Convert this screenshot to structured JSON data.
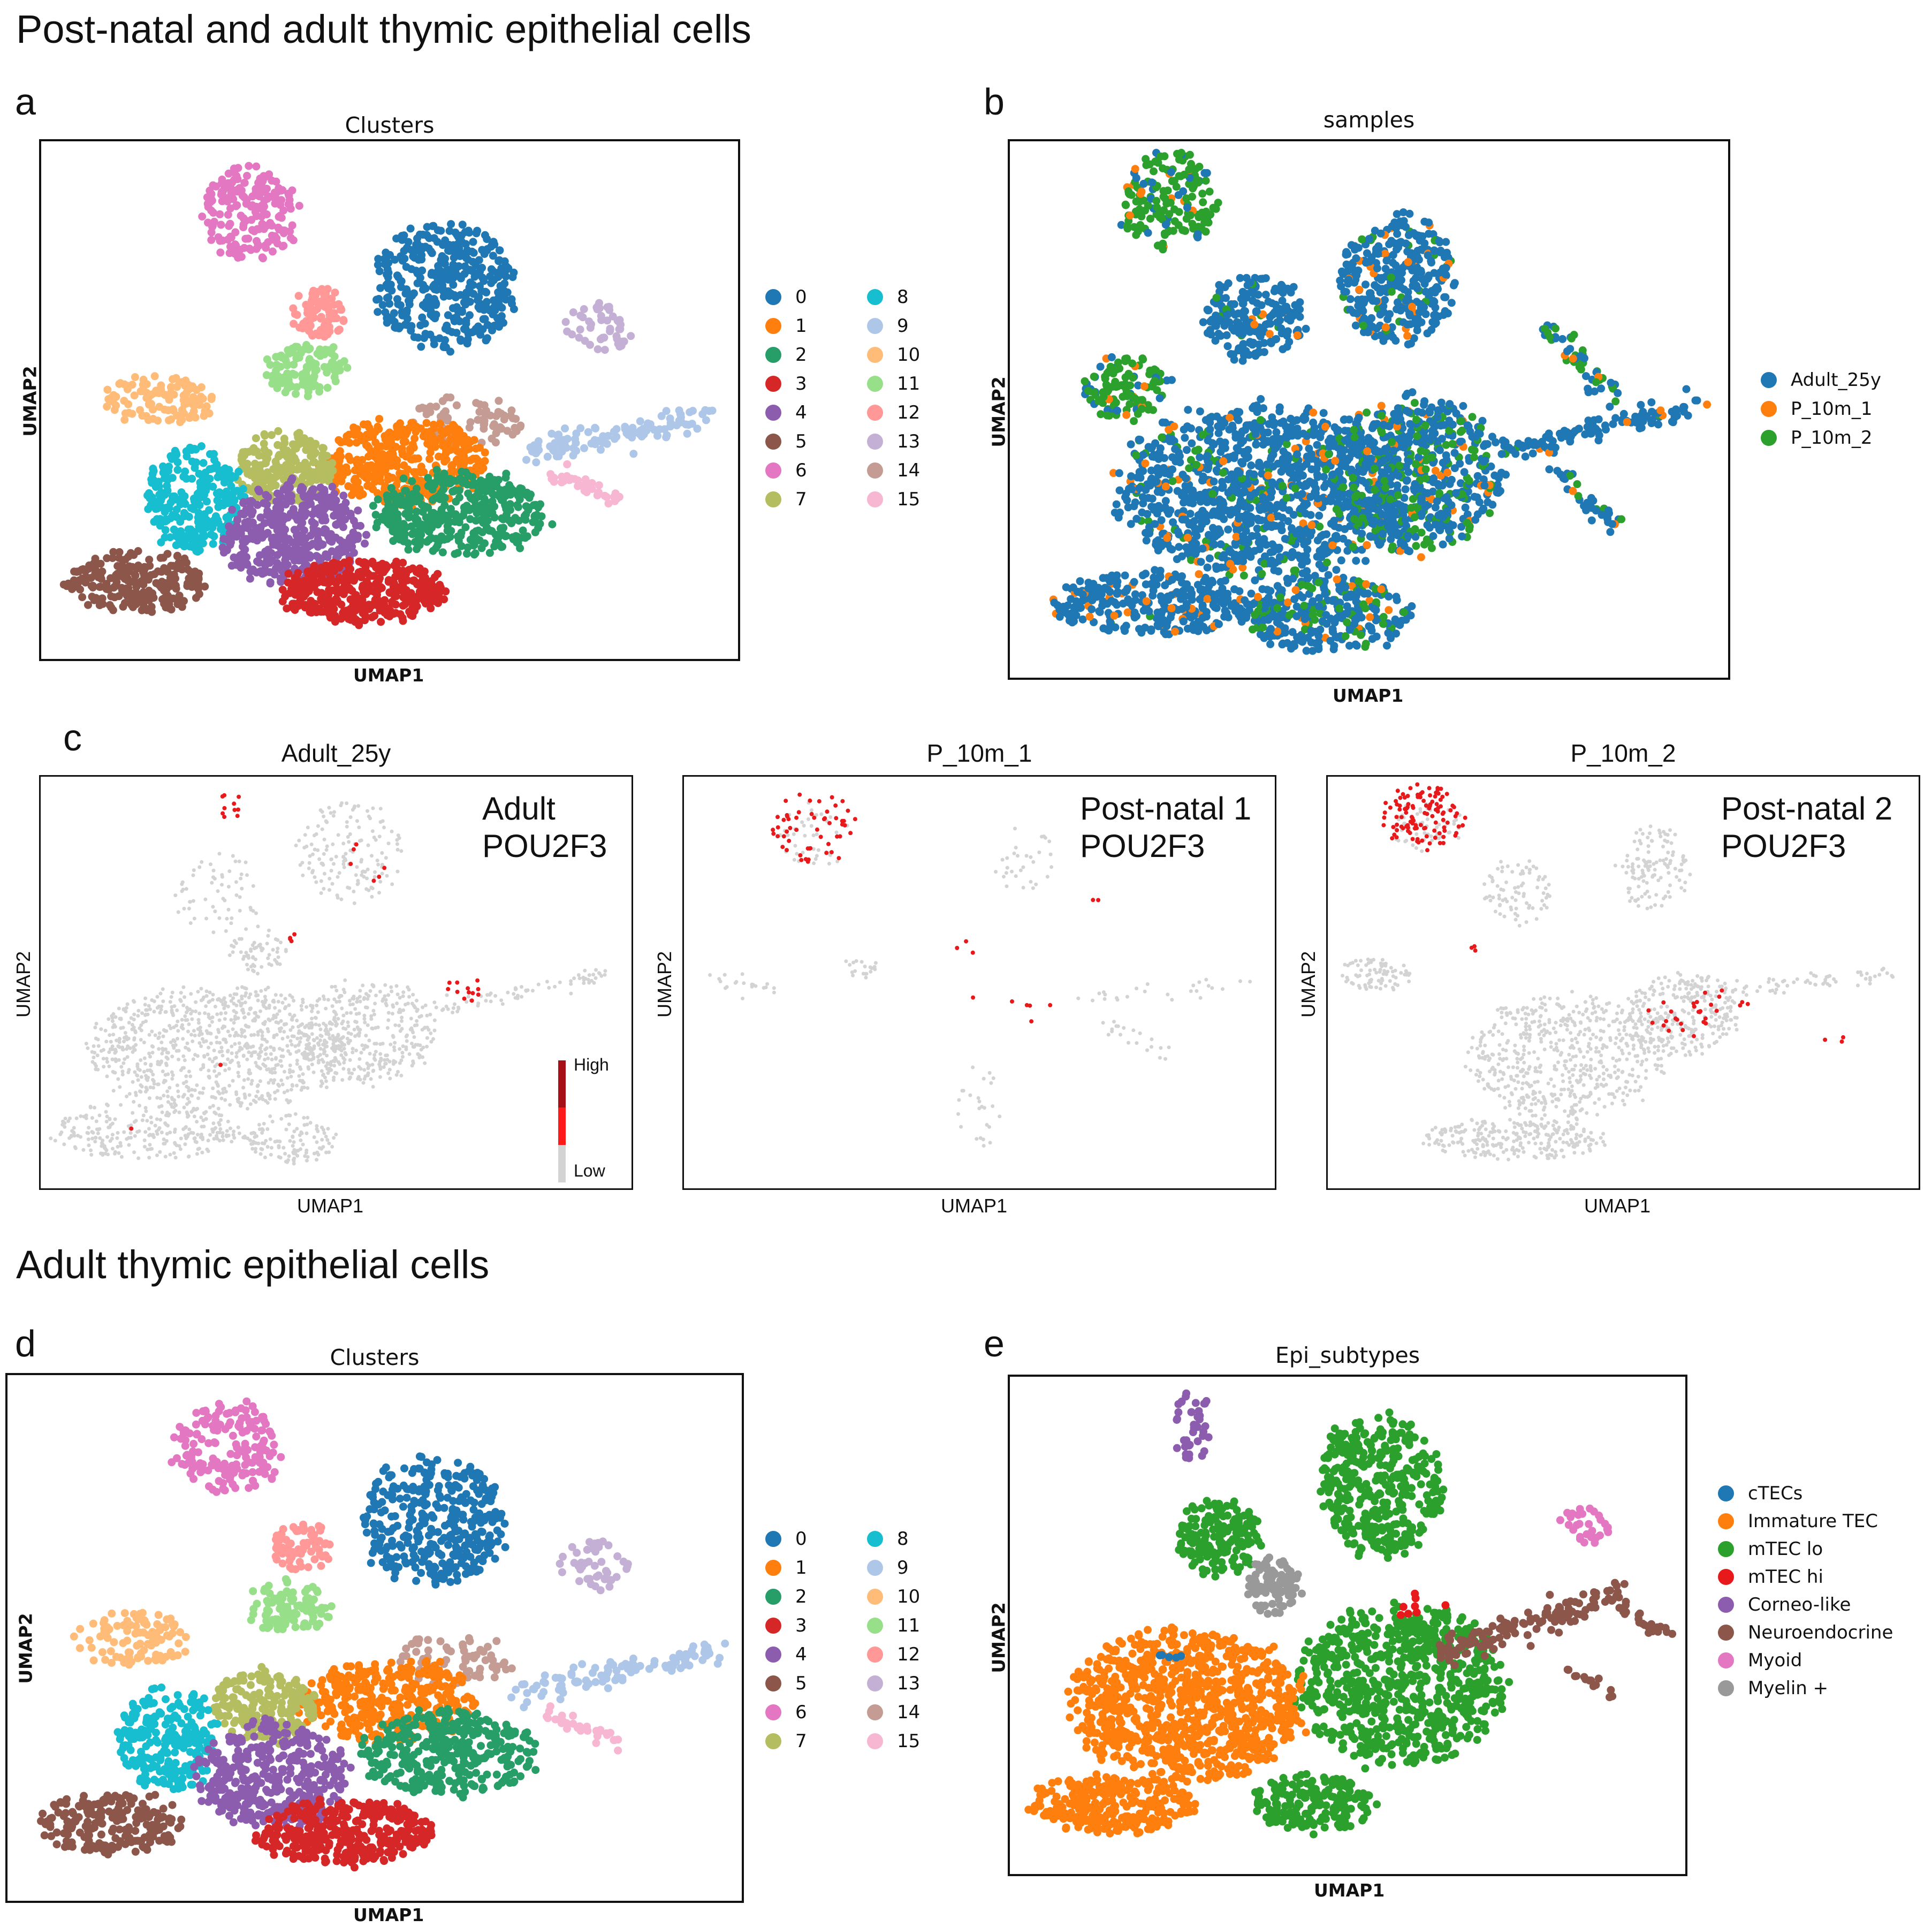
{
  "headings": {
    "top": "Post-natal and adult thymic epithelial cells",
    "bottom": "Adult thymic epithelial cells"
  },
  "panel_labels": {
    "a": "a",
    "b": "b",
    "c": "c",
    "d": "d",
    "e": "e"
  },
  "axis_labels": {
    "x": "UMAP1",
    "y": "UMAP2"
  },
  "colors": {
    "c0": "#1f77b4",
    "c1": "#ff7f0e",
    "c2": "#279e68",
    "c3": "#d62728",
    "c4": "#8c5cae",
    "c5": "#8c564b",
    "c6": "#e377c2",
    "c7": "#b5bd61",
    "c8": "#17becf",
    "c9": "#aec7e8",
    "c10": "#ffbb78",
    "c11": "#98df8a",
    "c12": "#ff9896",
    "c13": "#c5b0d5",
    "c14": "#c49c94",
    "c15": "#f7b6d2",
    "grey": "#d3d3d3",
    "red": "#e8191b",
    "green": "#2ca02c"
  },
  "chart_data": [
    {
      "id": "a",
      "type": "scatter",
      "title": "Clusters",
      "xlabel": "UMAP1",
      "ylabel": "UMAP2",
      "legend_title": "",
      "legend": [
        "0",
        "1",
        "2",
        "3",
        "4",
        "5",
        "6",
        "7",
        "8",
        "9",
        "10",
        "11",
        "12",
        "13",
        "14",
        "15"
      ],
      "legend_position": "right"
    },
    {
      "id": "b",
      "type": "scatter",
      "title": "samples",
      "xlabel": "UMAP1",
      "ylabel": "UMAP2",
      "legend": [
        "Adult_25y",
        "P_10m_1",
        "P_10m_2"
      ],
      "legend_position": "right"
    },
    {
      "id": "c1",
      "type": "scatter",
      "title": "Adult_25y",
      "xlabel": "UMAP1",
      "ylabel": "UMAP2",
      "annotation": [
        "Adult",
        "POU2F3"
      ],
      "colorbar": {
        "high": "High",
        "low": "Low"
      }
    },
    {
      "id": "c2",
      "type": "scatter",
      "title": "P_10m_1",
      "xlabel": "UMAP1",
      "ylabel": "UMAP2",
      "annotation": [
        "Post-natal 1",
        "POU2F3"
      ]
    },
    {
      "id": "c3",
      "type": "scatter",
      "title": "P_10m_2",
      "xlabel": "UMAP1",
      "ylabel": "UMAP2",
      "annotation": [
        "Post-natal 2",
        "POU2F3"
      ]
    },
    {
      "id": "d",
      "type": "scatter",
      "title": "Clusters",
      "xlabel": "UMAP1",
      "ylabel": "UMAP2",
      "legend": [
        "0",
        "1",
        "2",
        "3",
        "4",
        "5",
        "6",
        "7",
        "8",
        "9",
        "10",
        "11",
        "12",
        "13",
        "14",
        "15"
      ],
      "legend_position": "right"
    },
    {
      "id": "e",
      "type": "scatter",
      "title": "Epi_subtypes",
      "xlabel": "UMAP1",
      "ylabel": "UMAP2",
      "legend": [
        "cTECs",
        "Immature TEC",
        "mTEC lo",
        "mTEC hi",
        "Corneo-like",
        "Neuroendocrine",
        "Myoid",
        "Myelin +"
      ],
      "legend_position": "right"
    }
  ]
}
